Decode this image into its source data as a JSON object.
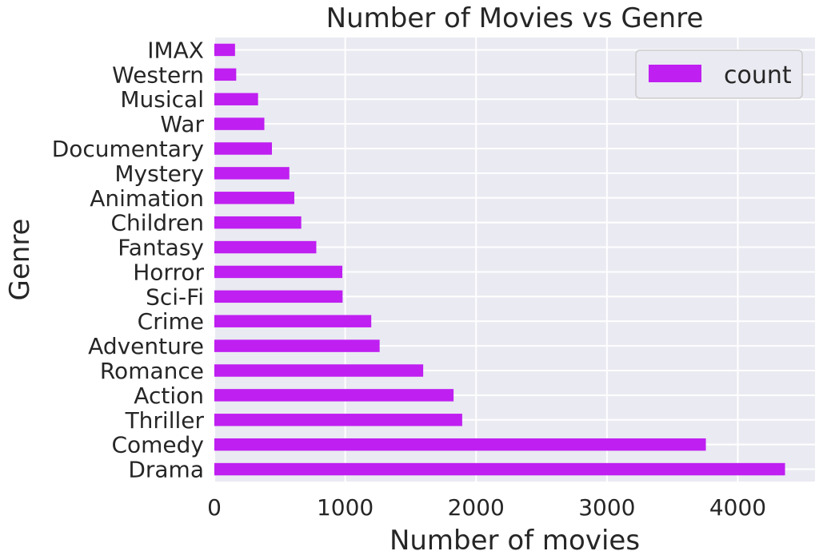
{
  "chart_data": {
    "type": "bar",
    "orientation": "horizontal",
    "title": "Number of Movies vs Genre",
    "xlabel": "Number of movies",
    "ylabel": "Genre",
    "categories": [
      "Drama",
      "Comedy",
      "Thriller",
      "Action",
      "Romance",
      "Adventure",
      "Crime",
      "Sci-Fi",
      "Horror",
      "Fantasy",
      "Children",
      "Animation",
      "Mystery",
      "Documentary",
      "War",
      "Musical",
      "Western",
      "IMAX"
    ],
    "series": [
      {
        "name": "count",
        "values": [
          4361,
          3756,
          1894,
          1828,
          1596,
          1263,
          1199,
          980,
          978,
          779,
          664,
          611,
          573,
          440,
          382,
          334,
          167,
          158
        ]
      }
    ],
    "xlim": [
      0,
      4590
    ],
    "xticks": [
      0,
      1000,
      2000,
      3000,
      4000
    ],
    "xtick_labels": [
      "0",
      "1000",
      "2000",
      "3000",
      "4000"
    ],
    "grid": true,
    "legend_position": "upper right",
    "colors": {
      "bar": "#bf1ff1",
      "plot_bg": "#eaeaf2",
      "grid": "#ffffff"
    }
  }
}
